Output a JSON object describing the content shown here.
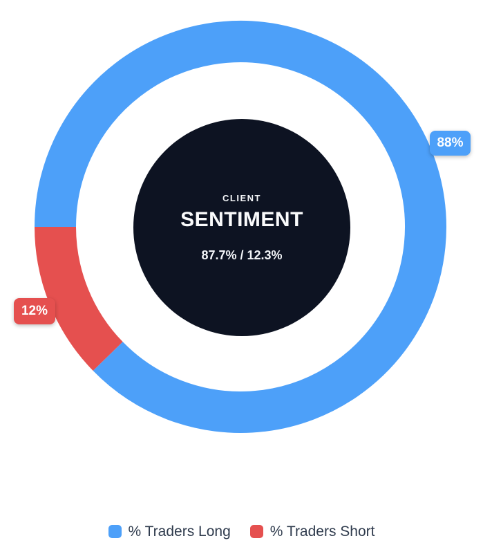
{
  "chart_data": {
    "type": "pie",
    "variant": "donut",
    "title": "CLIENT SENTIMENT",
    "center": {
      "top": "CLIENT",
      "main": "SENTIMENT",
      "sub": "87.7% / 12.3%"
    },
    "series": [
      {
        "name": "% Traders Long",
        "value": 87.7,
        "label": "88%",
        "color": "#4da0f9"
      },
      {
        "name": "% Traders Short",
        "value": 12.3,
        "label": "12%",
        "color": "#e5504f"
      }
    ],
    "start_angle_deg": 180,
    "direction": "clockwise",
    "legend_position": "bottom",
    "center_fill": "#0d1322",
    "background": "#ffffff"
  }
}
